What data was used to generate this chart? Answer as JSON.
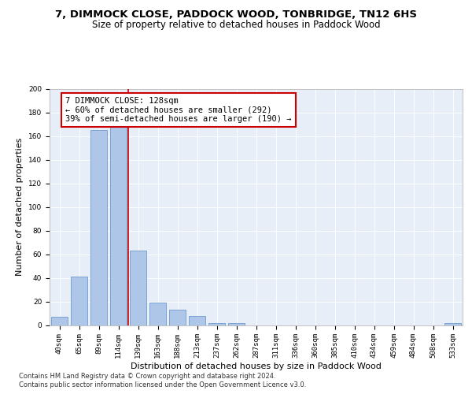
{
  "title_line1": "7, DIMMOCK CLOSE, PADDOCK WOOD, TONBRIDGE, TN12 6HS",
  "title_line2": "Size of property relative to detached houses in Paddock Wood",
  "xlabel": "Distribution of detached houses by size in Paddock Wood",
  "ylabel": "Number of detached properties",
  "categories": [
    "40sqm",
    "65sqm",
    "89sqm",
    "114sqm",
    "139sqm",
    "163sqm",
    "188sqm",
    "213sqm",
    "237sqm",
    "262sqm",
    "287sqm",
    "311sqm",
    "336sqm",
    "360sqm",
    "385sqm",
    "410sqm",
    "434sqm",
    "459sqm",
    "484sqm",
    "508sqm",
    "533sqm"
  ],
  "values": [
    7,
    41,
    165,
    168,
    63,
    19,
    13,
    8,
    2,
    2,
    0,
    0,
    0,
    0,
    0,
    0,
    0,
    0,
    0,
    0,
    2
  ],
  "bar_color": "#aec6e8",
  "bar_edge_color": "#5b8fc9",
  "vline_x_index": 3.5,
  "vline_color": "#cc0000",
  "annotation_line1": "7 DIMMOCK CLOSE: 128sqm",
  "annotation_line2": "← 60% of detached houses are smaller (292)",
  "annotation_line3": "39% of semi-detached houses are larger (190) →",
  "annotation_box_color": "#ffffff",
  "annotation_box_edge": "#cc0000",
  "ylim": [
    0,
    200
  ],
  "yticks": [
    0,
    20,
    40,
    60,
    80,
    100,
    120,
    140,
    160,
    180,
    200
  ],
  "bg_color": "#e8eef7",
  "fig_bg_color": "#ffffff",
  "footer_line1": "Contains HM Land Registry data © Crown copyright and database right 2024.",
  "footer_line2": "Contains public sector information licensed under the Open Government Licence v3.0.",
  "title_fontsize": 9.5,
  "subtitle_fontsize": 8.5,
  "xlabel_fontsize": 8,
  "ylabel_fontsize": 8,
  "tick_fontsize": 6.5,
  "annotation_fontsize": 7.5,
  "footer_fontsize": 6
}
